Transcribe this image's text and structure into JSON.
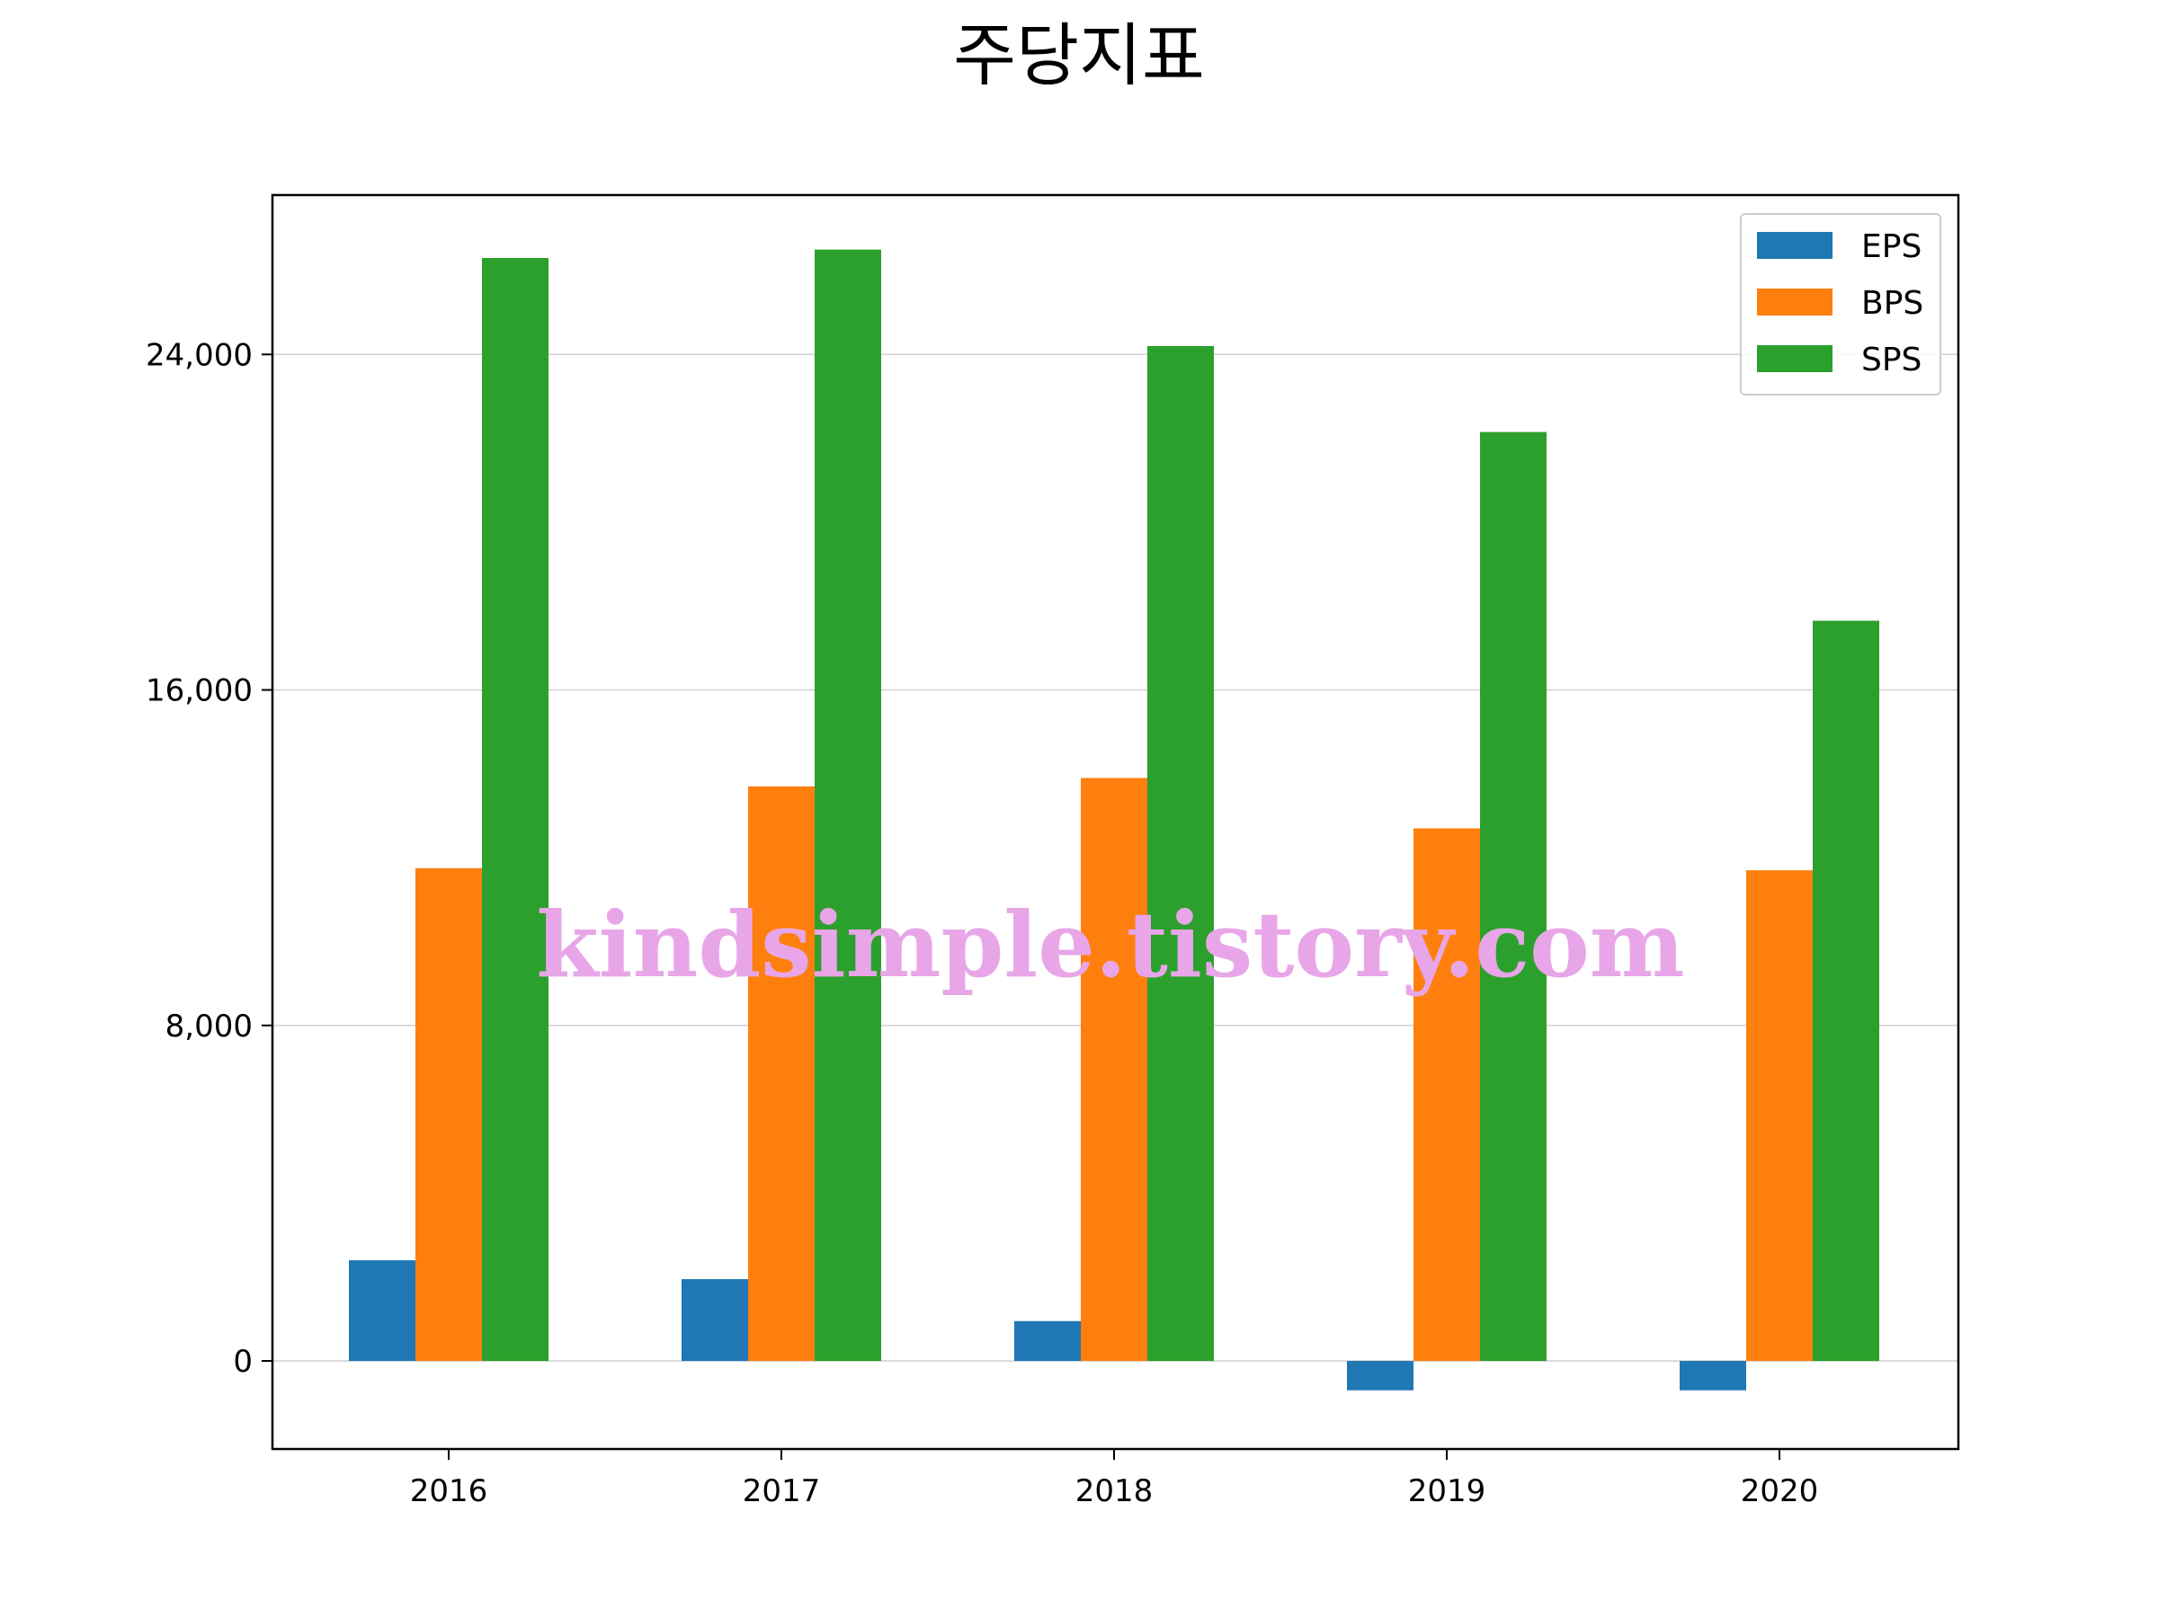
{
  "chart_data": {
    "type": "bar",
    "title": "주당지표",
    "categories": [
      "2016",
      "2017",
      "2018",
      "2019",
      "2020"
    ],
    "series": [
      {
        "name": "EPS",
        "color": "#1f77b4",
        "values": [
          2400,
          1950,
          950,
          -700,
          -700
        ]
      },
      {
        "name": "BPS",
        "color": "#ff7f0e",
        "values": [
          11750,
          13700,
          13900,
          12700,
          11700
        ]
      },
      {
        "name": "SPS",
        "color": "#2ca02c",
        "values": [
          26300,
          26500,
          24200,
          22150,
          17650
        ]
      }
    ],
    "yticks": [
      0,
      8000,
      16000,
      24000
    ],
    "ytick_labels": [
      "0",
      "8,000",
      "16,000",
      "24,000"
    ],
    "ylim": [
      -2100,
      27800
    ],
    "xlabel": "",
    "ylabel": "",
    "grid": "horizontal",
    "legend_position": "top-right",
    "watermark": "kindsimple.tistory.com"
  }
}
